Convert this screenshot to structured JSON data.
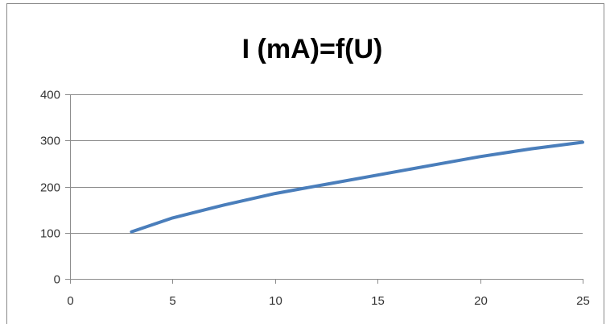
{
  "chart_data": {
    "type": "line",
    "title": "I (mA)=f(U)",
    "xlabel": "",
    "ylabel": "",
    "xlim": [
      0,
      25
    ],
    "ylim": [
      0,
      400
    ],
    "x_ticks": [
      "0",
      "5",
      "10",
      "15",
      "20",
      "25"
    ],
    "y_ticks": [
      "0",
      "100",
      "200",
      "300",
      "400"
    ],
    "grid": "horizontal",
    "legend": "none",
    "series": [
      {
        "color": "#4a7ebb",
        "x": [
          3,
          5,
          7.5,
          10,
          12.5,
          15,
          17.5,
          20,
          22.5,
          25
        ],
        "y": [
          102,
          132,
          160,
          185,
          205,
          225,
          245,
          265,
          282,
          296
        ]
      }
    ]
  }
}
